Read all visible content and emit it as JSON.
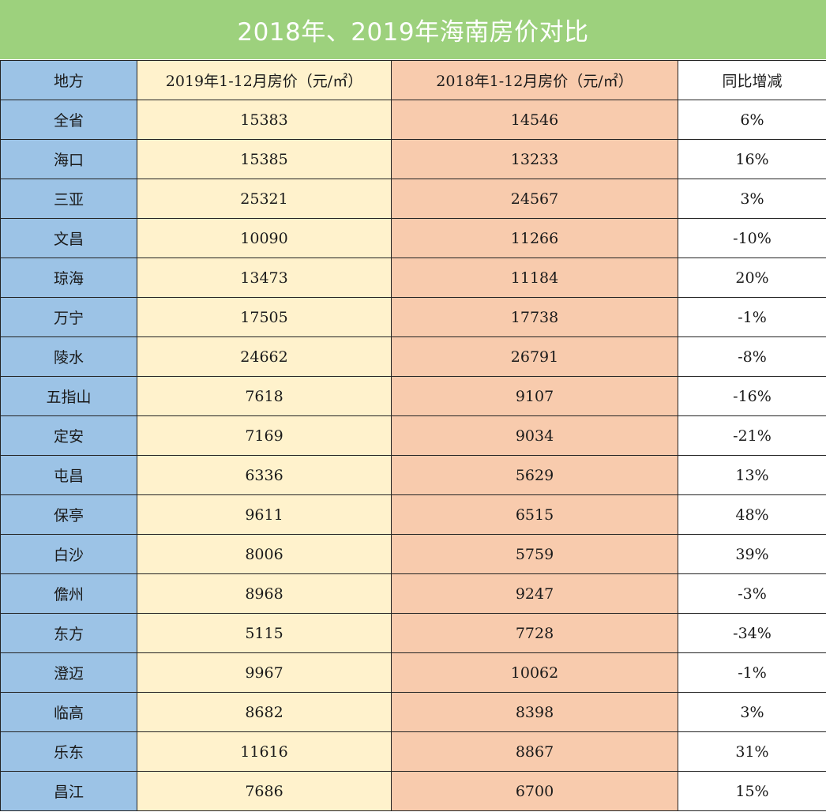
{
  "title": "2018年、2019年海南房价对比",
  "colors": {
    "title_bg": "#9dd17d",
    "region_col": "#9cc3e6",
    "col_2019": "#fff2cc",
    "col_2018": "#f8cbad",
    "negative_text": "#e0241b"
  },
  "headers": {
    "region": "地方",
    "price_2019": "2019年1-12月房价（元/㎡）",
    "price_2018": "2018年1-12月房价（元/㎡）",
    "yoy": "同比增减"
  },
  "rows": [
    {
      "region": "全省",
      "price_2019": "15383",
      "price_2018": "14546",
      "yoy": "6%"
    },
    {
      "region": "海口",
      "price_2019": "15385",
      "price_2018": "13233",
      "yoy": "16%"
    },
    {
      "region": "三亚",
      "price_2019": "25321",
      "price_2018": "24567",
      "yoy": "3%"
    },
    {
      "region": "文昌",
      "price_2019": "10090",
      "price_2018": "11266",
      "yoy": "-10%"
    },
    {
      "region": "琼海",
      "price_2019": "13473",
      "price_2018": "11184",
      "yoy": "20%"
    },
    {
      "region": "万宁",
      "price_2019": "17505",
      "price_2018": "17738",
      "yoy": "-1%"
    },
    {
      "region": "陵水",
      "price_2019": "24662",
      "price_2018": "26791",
      "yoy": "-8%"
    },
    {
      "region": "五指山",
      "price_2019": "7618",
      "price_2018": "9107",
      "yoy": "-16%"
    },
    {
      "region": "定安",
      "price_2019": "7169",
      "price_2018": "9034",
      "yoy": "-21%"
    },
    {
      "region": "屯昌",
      "price_2019": "6336",
      "price_2018": "5629",
      "yoy": "13%"
    },
    {
      "region": "保亭",
      "price_2019": "9611",
      "price_2018": "6515",
      "yoy": "48%"
    },
    {
      "region": "白沙",
      "price_2019": "8006",
      "price_2018": "5759",
      "yoy": "39%"
    },
    {
      "region": "儋州",
      "price_2019": "8968",
      "price_2018": "9247",
      "yoy": "-3%"
    },
    {
      "region": "东方",
      "price_2019": "5115",
      "price_2018": "7728",
      "yoy": "-34%"
    },
    {
      "region": "澄迈",
      "price_2019": "9967",
      "price_2018": "10062",
      "yoy": "-1%"
    },
    {
      "region": "临高",
      "price_2019": "8682",
      "price_2018": "8398",
      "yoy": "3%"
    },
    {
      "region": "乐东",
      "price_2019": "11616",
      "price_2018": "8867",
      "yoy": "31%"
    },
    {
      "region": "昌江",
      "price_2019": "7686",
      "price_2018": "6700",
      "yoy": "15%"
    }
  ]
}
